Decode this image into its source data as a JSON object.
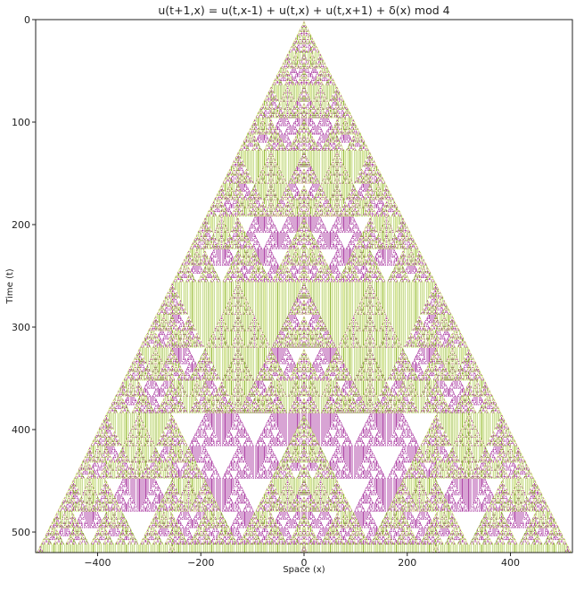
{
  "chart_data": {
    "type": "heatmap",
    "title": "u(t+1,x) = u(t,x-1) + u(t,x) + u(t,x+1) + δ(x) mod 4",
    "xlabel": "Space (x)",
    "ylabel": "Time (t)",
    "xlim": [
      -520,
      520
    ],
    "ylim": [
      0,
      520
    ],
    "x_ticks": [
      -400,
      -200,
      0,
      200,
      400
    ],
    "x_tick_labels": [
      "−400",
      "−200",
      "0",
      "200",
      "400"
    ],
    "y_ticks": [
      0,
      100,
      200,
      300,
      400,
      500
    ],
    "y_tick_labels": [
      "0",
      "100",
      "200",
      "300",
      "400",
      "500"
    ],
    "y_axis_inverted": true,
    "grid": true,
    "modulus": 4,
    "state_colors": [
      "#ffffff",
      "#e9f3a6",
      "#b04aa8",
      "#93b93a"
    ]
  }
}
